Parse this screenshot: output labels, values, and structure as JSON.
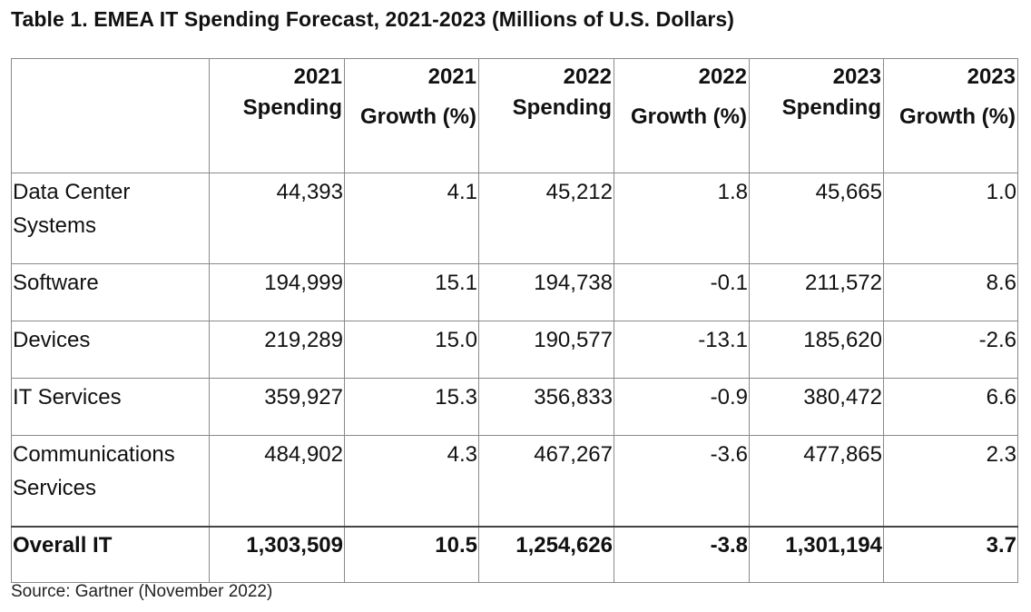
{
  "title": "Table 1. EMEA IT Spending Forecast, 2021-2023 (Millions of U.S. Dollars)",
  "table": {
    "headers": [
      {
        "year": "",
        "sub": ""
      },
      {
        "year": "2021",
        "sub": "Spending"
      },
      {
        "year": "2021",
        "sub": "Growth (%)"
      },
      {
        "year": "2022",
        "sub": "Spending"
      },
      {
        "year": "2022",
        "sub": "Growth (%)"
      },
      {
        "year": "2023",
        "sub": "Spending"
      },
      {
        "year": "2023",
        "sub": "Growth (%)"
      }
    ],
    "rows": [
      {
        "label": "Data Center Systems",
        "values": [
          "44,393",
          "4.1",
          "45,212",
          "1.8",
          "45,665",
          "1.0"
        ]
      },
      {
        "label": "Software",
        "values": [
          "194,999",
          "15.1",
          "194,738",
          "-0.1",
          "211,572",
          "8.6"
        ]
      },
      {
        "label": "Devices",
        "values": [
          "219,289",
          "15.0",
          "190,577",
          "-13.1",
          "185,620",
          "-2.6"
        ]
      },
      {
        "label": "IT Services",
        "values": [
          "359,927",
          "15.3",
          "356,833",
          "-0.9",
          "380,472",
          "6.6"
        ]
      },
      {
        "label": "Communications Services",
        "values": [
          "484,902",
          "4.3",
          "467,267",
          "-3.6",
          "477,865",
          "2.3"
        ]
      },
      {
        "label": "Overall IT",
        "values": [
          "1,303,509",
          "10.5",
          "1,254,626",
          "-3.8",
          "1,301,194",
          "3.7"
        ]
      }
    ]
  },
  "source": "Source: Gartner (November 2022)"
}
